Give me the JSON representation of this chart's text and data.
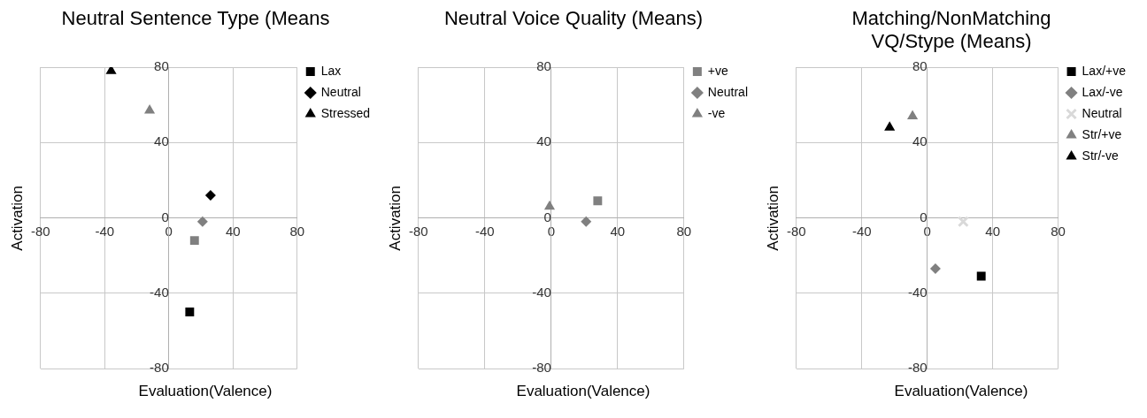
{
  "chart_data": [
    {
      "type": "scatter",
      "title": "Neutral Sentence Type (Means",
      "xlabel": "Evaluation(Valence)",
      "ylabel": "Activation",
      "xlim": [
        -80,
        80
      ],
      "ylim": [
        -80,
        80
      ],
      "xticks": [
        -80,
        -40,
        0,
        40,
        80
      ],
      "yticks": [
        -80,
        -40,
        0,
        40,
        80
      ],
      "grid": true,
      "legend": "top right",
      "series": [
        {
          "name": "Lax",
          "color": "#000000",
          "marker": "square",
          "x": [
            13
          ],
          "values": [
            -50
          ]
        },
        {
          "name": "Neutral",
          "color": "#000000",
          "marker": "diamond",
          "x": [
            26
          ],
          "values": [
            12
          ]
        },
        {
          "name": "Stressed",
          "color": "#000000",
          "marker": "triangle",
          "x": [
            -36
          ],
          "values": [
            78
          ]
        },
        {
          "color": "#808080",
          "marker": "square",
          "x": [
            16
          ],
          "values": [
            -12
          ]
        },
        {
          "color": "#808080",
          "marker": "diamond",
          "x": [
            21
          ],
          "values": [
            -2
          ]
        },
        {
          "color": "#808080",
          "marker": "triangle",
          "x": [
            -12
          ],
          "values": [
            57
          ]
        }
      ]
    },
    {
      "type": "scatter",
      "title": "Neutral Voice Quality (Means)",
      "xlabel": "Evaluation(Valence)",
      "ylabel": "Activation",
      "xlim": [
        -80,
        80
      ],
      "ylim": [
        -80,
        80
      ],
      "xticks": [
        -80,
        -40,
        0,
        40,
        80
      ],
      "yticks": [
        -80,
        -40,
        0,
        40,
        80
      ],
      "grid": true,
      "legend": "top right",
      "series": [
        {
          "name": "+ve",
          "color": "#808080",
          "marker": "square",
          "x": [
            28
          ],
          "values": [
            9
          ]
        },
        {
          "name": "Neutral",
          "color": "#808080",
          "marker": "diamond",
          "x": [
            21
          ],
          "values": [
            -2
          ]
        },
        {
          "name": "-ve",
          "color": "#808080",
          "marker": "triangle",
          "x": [
            -1
          ],
          "values": [
            6
          ]
        }
      ]
    },
    {
      "type": "scatter",
      "title": "Matching/NonMatching\nVQ/Stype (Means)",
      "xlabel": "Evaluation(Valence)",
      "ylabel": "Activation",
      "xlim": [
        -80,
        80
      ],
      "ylim": [
        -80,
        80
      ],
      "xticks": [
        -80,
        -40,
        0,
        40,
        80
      ],
      "yticks": [
        -80,
        -40,
        0,
        40,
        80
      ],
      "grid": true,
      "legend": "top right",
      "series": [
        {
          "name": "Lax/+ve",
          "color": "#000000",
          "marker": "square",
          "x": [
            33
          ],
          "values": [
            -31
          ]
        },
        {
          "name": "Lax/-ve",
          "color": "#808080",
          "marker": "diamond",
          "x": [
            5
          ],
          "values": [
            -27
          ]
        },
        {
          "name": "Neutral",
          "color": "#d9d9d9",
          "marker": "cross",
          "x": [
            22
          ],
          "values": [
            -2
          ]
        },
        {
          "name": "Str/+ve",
          "color": "#808080",
          "marker": "triangle",
          "x": [
            -9
          ],
          "values": [
            54
          ]
        },
        {
          "name": "Str/-ve",
          "color": "#000000",
          "marker": "triangle",
          "x": [
            -23
          ],
          "values": [
            48
          ]
        }
      ]
    }
  ]
}
